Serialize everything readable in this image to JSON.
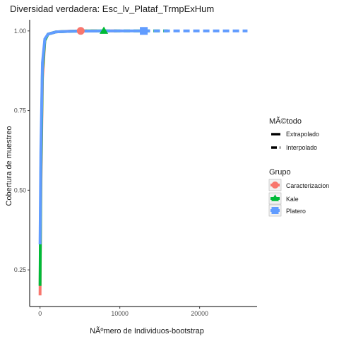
{
  "chart_data": {
    "type": "line",
    "title": "Diversidad verdadera: Esc_lv_Plataf_TrmpExHum",
    "xlabel": "NÃºmero de Individuos-bootstrap",
    "ylabel": "Cobertura de muestreo",
    "xlim": [
      -1300,
      27200
    ],
    "ylim": [
      0.135,
      1.035
    ],
    "x_ticks": [
      0,
      10000,
      20000
    ],
    "x_tick_labels": [
      "0",
      "10000",
      "20000"
    ],
    "y_ticks": [
      0.25,
      0.5,
      0.75,
      1.0
    ],
    "y_tick_labels": [
      "0.25",
      "0.50",
      "0.75",
      "1.00"
    ],
    "grid": false,
    "legend_position": "right",
    "legends": [
      {
        "title": "MÃ©todo",
        "entries": [
          {
            "label": "Extrapolado",
            "dash": "solid"
          },
          {
            "label": "Interpolado",
            "dash": "dashed"
          }
        ]
      },
      {
        "title": "Grupo",
        "entries": [
          {
            "label": "Caracterizacion",
            "color": "#F8766D",
            "shape": "circle"
          },
          {
            "label": "Kale",
            "color": "#00BA38",
            "shape": "triangle"
          },
          {
            "label": "Platero",
            "color": "#619CFF",
            "shape": "square"
          }
        ]
      }
    ],
    "series": [
      {
        "name": "Caracterizacion",
        "color": "#F8766D",
        "shape": "circle",
        "observed": [
          5100,
          1.0
        ],
        "interpolated": {
          "x": [
            0,
            100,
            300,
            600,
            1000,
            2000,
            3500,
            5100
          ],
          "y": [
            0.17,
            0.5,
            0.85,
            0.97,
            0.99,
            0.997,
            0.999,
            1.0
          ]
        },
        "extrapolated": {
          "x": [
            5100,
            7000,
            10200
          ],
          "y": [
            1.0,
            1.0,
            1.0
          ]
        }
      },
      {
        "name": "Kale",
        "color": "#00BA38",
        "shape": "triangle",
        "observed": [
          8000,
          1.0
        ],
        "interpolated": {
          "x": [
            0,
            100,
            300,
            600,
            1000,
            2000,
            4000,
            6000,
            8000
          ],
          "y": [
            0.2,
            0.55,
            0.88,
            0.97,
            0.99,
            0.997,
            0.999,
            1.0,
            1.0
          ]
        },
        "extrapolated": {
          "x": [
            8000,
            12000,
            16000
          ],
          "y": [
            1.0,
            1.0,
            1.0
          ]
        }
      },
      {
        "name": "Platero",
        "color": "#619CFF",
        "shape": "square",
        "observed": [
          13000,
          1.0
        ],
        "interpolated": {
          "x": [
            0,
            100,
            300,
            600,
            1000,
            2000,
            4000,
            8000,
            13000
          ],
          "y": [
            0.33,
            0.62,
            0.9,
            0.975,
            0.99,
            0.997,
            0.999,
            1.0,
            1.0
          ]
        },
        "extrapolated": {
          "x": [
            13000,
            19500,
            26000
          ],
          "y": [
            1.0,
            1.0,
            1.0
          ]
        }
      }
    ]
  }
}
